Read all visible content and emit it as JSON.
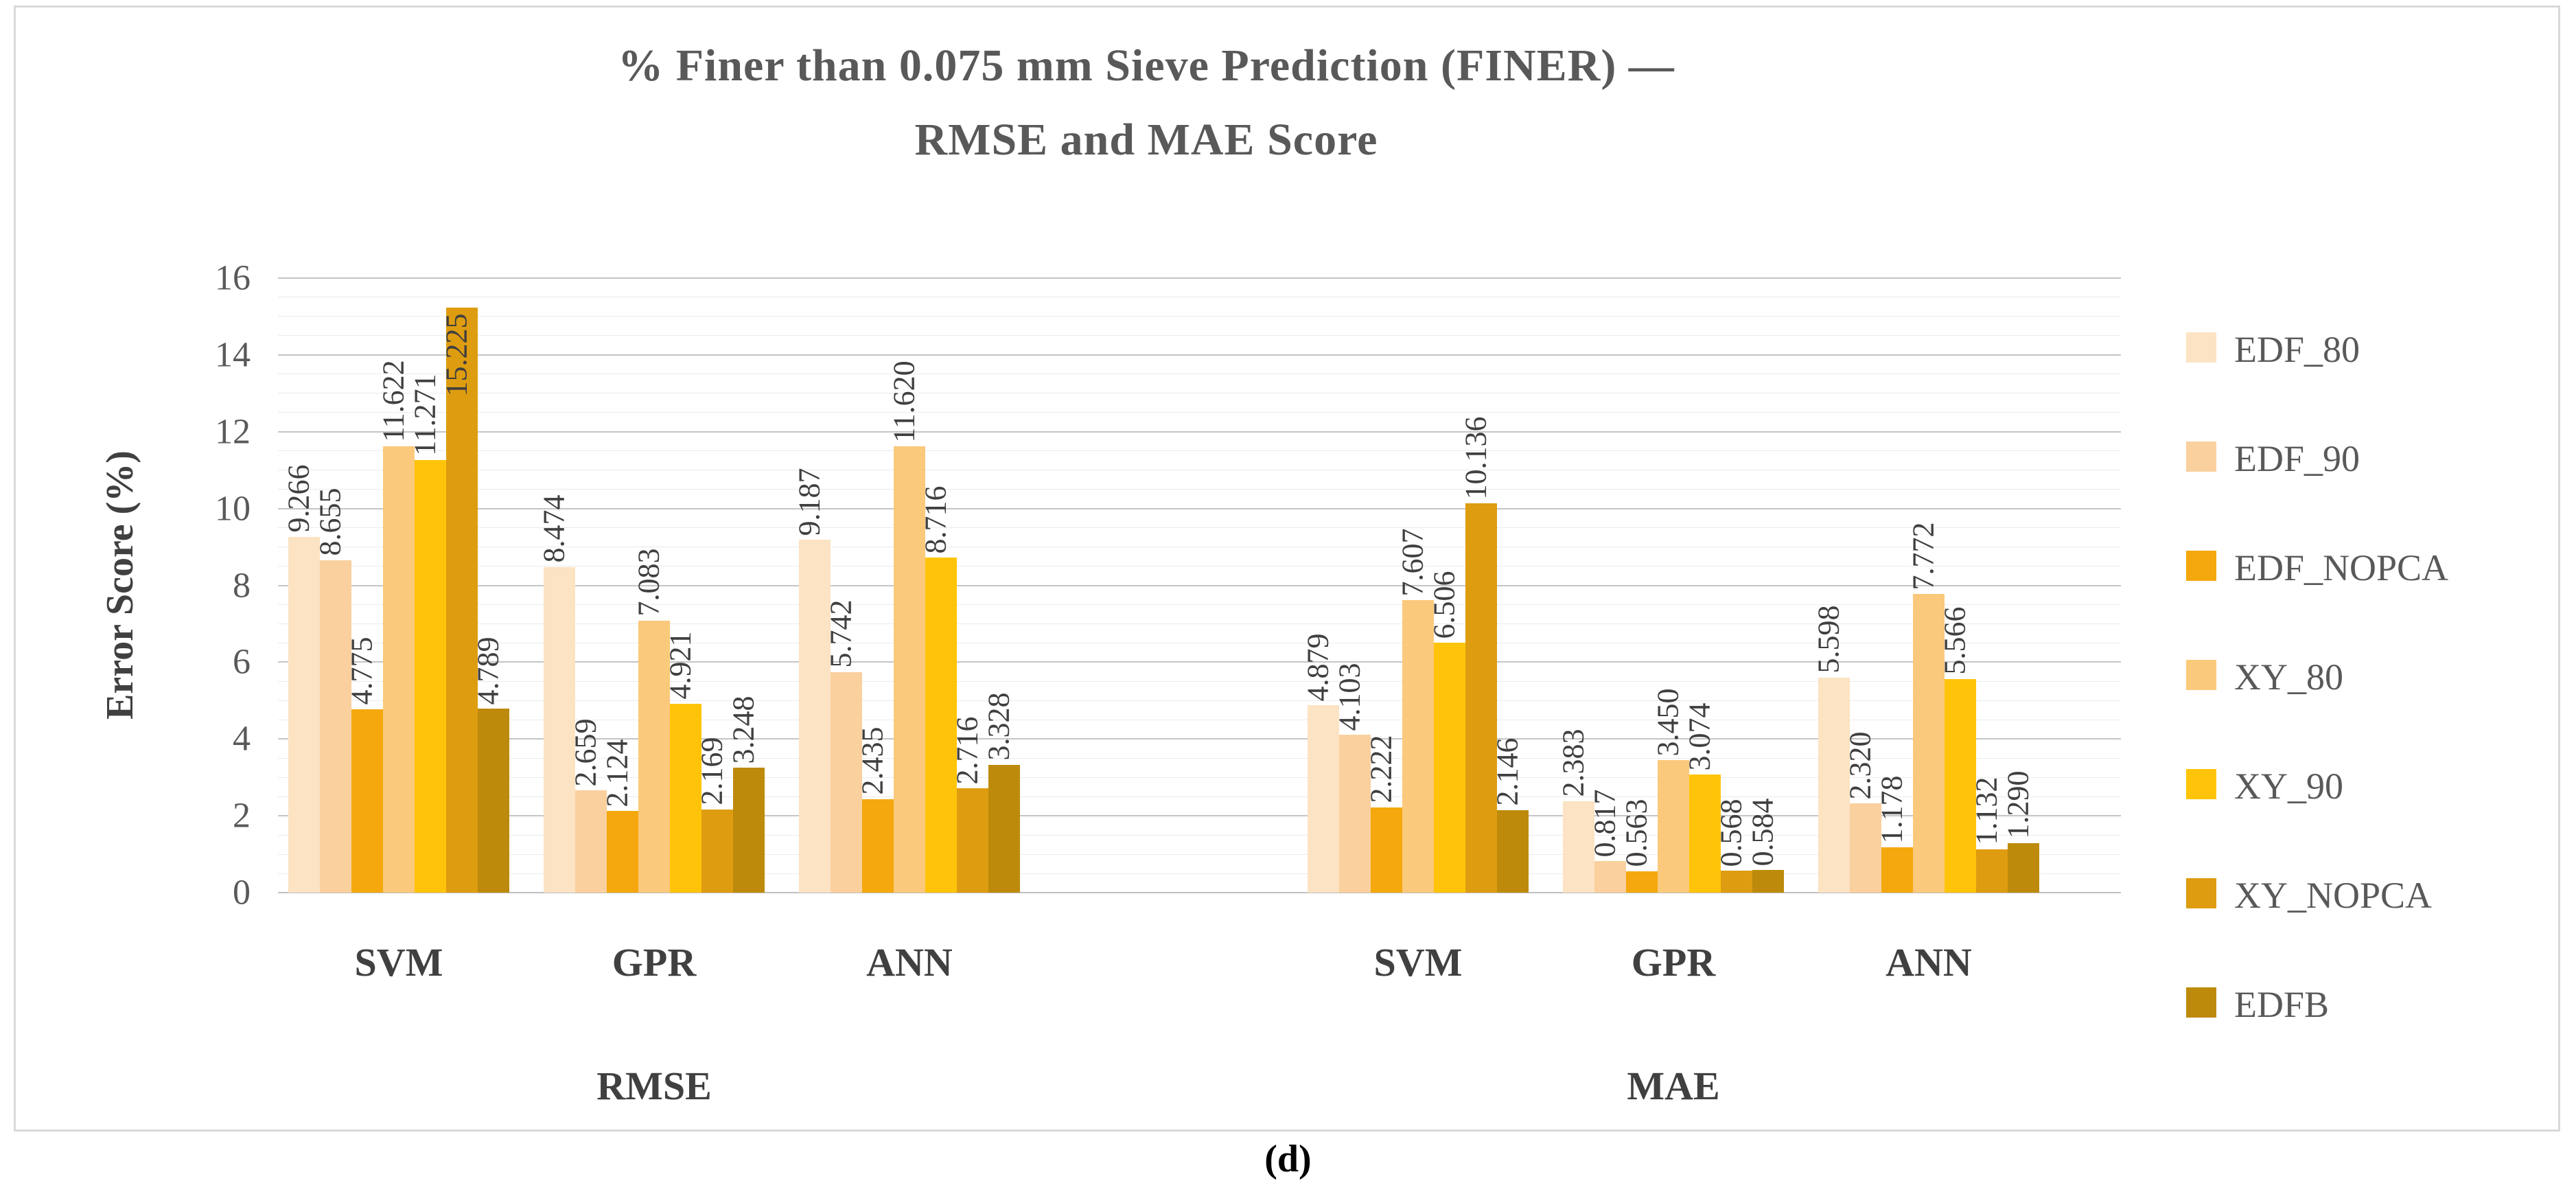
{
  "figure": {
    "caption": "(d)"
  },
  "chart_data": {
    "type": "bar",
    "title_lines": [
      "% Finer than 0.075 mm Sieve Prediction (FINER) —",
      "RMSE and MAE Score"
    ],
    "ylabel": "Error Score (%)",
    "ylim": [
      0,
      16
    ],
    "yticks": [
      0,
      2,
      4,
      6,
      8,
      10,
      12,
      14,
      16
    ],
    "grid": "horizontal major every 2 with minor lines every 0.5",
    "legend_position": "right",
    "sections": [
      "RMSE",
      "MAE"
    ],
    "groups": [
      "SVM",
      "GPR",
      "ANN"
    ],
    "label_decimals": 3,
    "series": [
      {
        "name": "EDF_80",
        "color": "#FBE3C3",
        "values": {
          "RMSE": [
            9.266,
            8.474,
            9.187
          ],
          "MAE": [
            4.879,
            2.383,
            5.598
          ]
        }
      },
      {
        "name": "EDF_90",
        "color": "#FAD09E",
        "values": {
          "RMSE": [
            8.655,
            2.659,
            5.742
          ],
          "MAE": [
            4.103,
            0.817,
            2.32
          ]
        }
      },
      {
        "name": "EDF_NOPCA",
        "color": "#F4A80D",
        "values": {
          "RMSE": [
            4.775,
            2.124,
            2.435
          ],
          "MAE": [
            2.222,
            0.563,
            1.178
          ]
        }
      },
      {
        "name": "XY_80",
        "color": "#FBC97B",
        "values": {
          "RMSE": [
            11.622,
            7.083,
            11.62
          ],
          "MAE": [
            7.607,
            3.45,
            7.772
          ]
        }
      },
      {
        "name": "XY_90",
        "color": "#FFC40A",
        "values": {
          "RMSE": [
            11.271,
            4.921,
            8.716
          ],
          "MAE": [
            6.506,
            3.074,
            5.566
          ]
        }
      },
      {
        "name": "XY_NOPCA",
        "color": "#DE9C10",
        "values": {
          "RMSE": [
            15.225,
            2.169,
            2.716
          ],
          "MAE": [
            10.136,
            0.568,
            1.132
          ]
        }
      },
      {
        "name": "EDFB",
        "color": "#BD8A0B",
        "values": {
          "RMSE": [
            4.789,
            3.248,
            3.328
          ],
          "MAE": [
            2.146,
            0.584,
            1.29
          ]
        }
      }
    ]
  }
}
